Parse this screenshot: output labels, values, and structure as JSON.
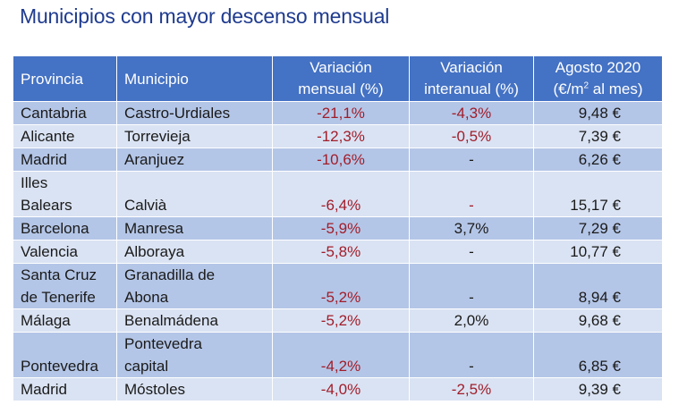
{
  "title": "Municipios con mayor descenso mensual",
  "headers": {
    "provincia": "Provincia",
    "municipio": "Municipio",
    "variacion_mensual_l1": "Variación",
    "variacion_mensual_l2": "mensual (%)",
    "variacion_interanual_l1": "Variación",
    "variacion_interanual_l2": "interanual (%)",
    "agosto_l1": "Agosto 2020",
    "agosto_l2_pre": "(€/m",
    "agosto_l2_sup": "2",
    "agosto_l2_post": " al mes)"
  },
  "rows": [
    {
      "provincia": [
        "Cantabria"
      ],
      "municipio": [
        "Castro-Urdiales"
      ],
      "mensual": "-21,1%",
      "interanual": "-4,3%",
      "interanual_neg": true,
      "precio": "9,48 €"
    },
    {
      "provincia": [
        "Alicante"
      ],
      "municipio": [
        "Torrevieja"
      ],
      "mensual": "-12,3%",
      "interanual": "-0,5%",
      "interanual_neg": true,
      "precio": "7,39 €"
    },
    {
      "provincia": [
        "Madrid"
      ],
      "municipio": [
        "Aranjuez"
      ],
      "mensual": "-10,6%",
      "interanual": "-",
      "interanual_neg": false,
      "precio": "6,26 €"
    },
    {
      "provincia": [
        "Illes",
        "Balears"
      ],
      "municipio": [
        "",
        "Calvià"
      ],
      "mensual": "-6,4%",
      "interanual": "-",
      "interanual_neg": true,
      "precio": "15,17 €"
    },
    {
      "provincia": [
        "Barcelona"
      ],
      "municipio": [
        "Manresa"
      ],
      "mensual": "-5,9%",
      "interanual": "3,7%",
      "interanual_neg": false,
      "precio": "7,29 €"
    },
    {
      "provincia": [
        "Valencia"
      ],
      "municipio": [
        "Alboraya"
      ],
      "mensual": "-5,8%",
      "interanual": "-",
      "interanual_neg": false,
      "precio": "10,77 €"
    },
    {
      "provincia": [
        "Santa Cruz",
        "de Tenerife"
      ],
      "municipio": [
        "Granadilla de",
        "Abona"
      ],
      "mensual": "-5,2%",
      "interanual": "-",
      "interanual_neg": false,
      "precio": "8,94 €"
    },
    {
      "provincia": [
        "Málaga"
      ],
      "municipio": [
        "Benalmádena"
      ],
      "mensual": "-5,2%",
      "interanual": "2,0%",
      "interanual_neg": false,
      "precio": "9,68 €"
    },
    {
      "provincia": [
        "",
        "Pontevedra"
      ],
      "municipio": [
        "Pontevedra",
        "capital"
      ],
      "mensual": "-4,2%",
      "interanual": "-",
      "interanual_neg": false,
      "precio": "6,85 €"
    },
    {
      "provincia": [
        "Madrid"
      ],
      "municipio": [
        "Móstoles"
      ],
      "mensual": "-4,0%",
      "interanual": "-2,5%",
      "interanual_neg": true,
      "precio": "9,39 €"
    }
  ],
  "colors": {
    "title": "#1f3b8f",
    "header_bg": "#4472c4",
    "row_dark": "#b4c6e7",
    "row_light": "#dae3f3",
    "negative_text": "#a11d2a"
  }
}
